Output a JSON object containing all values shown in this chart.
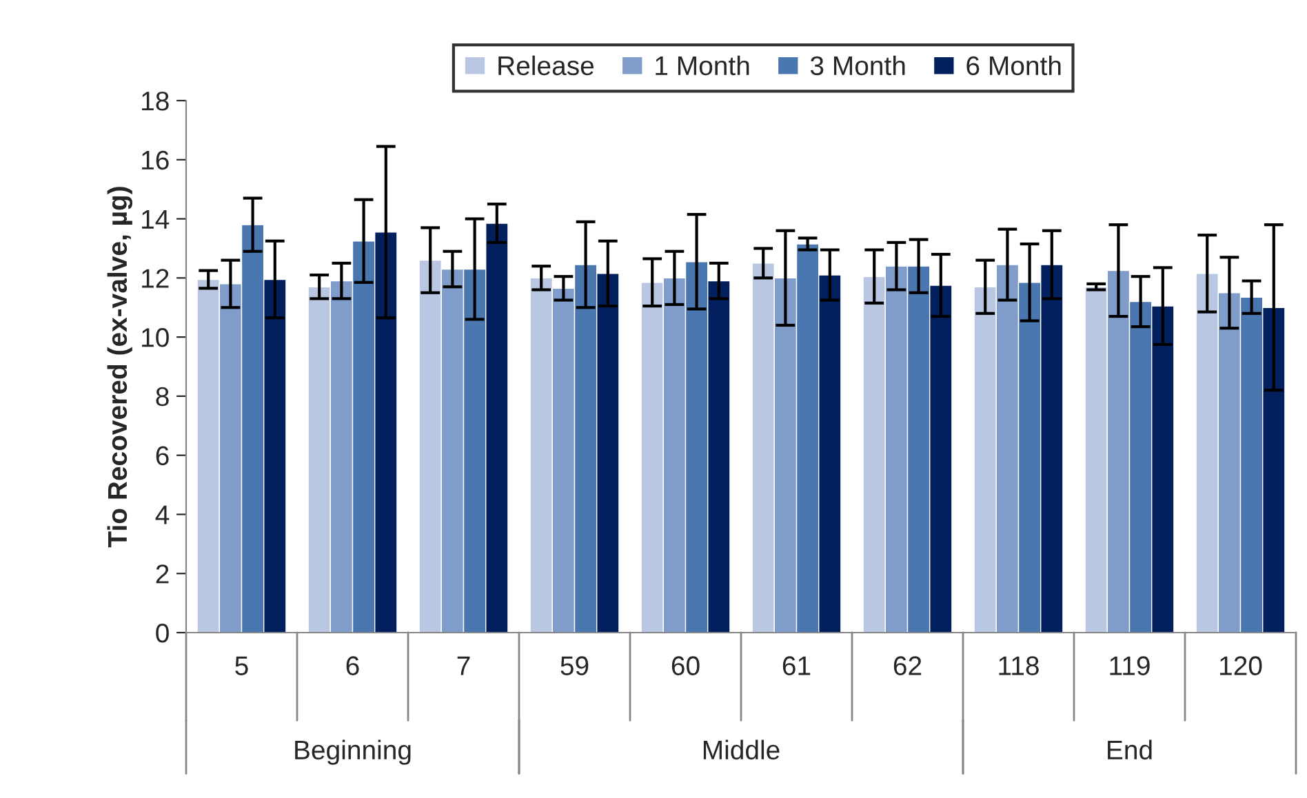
{
  "chart_data": {
    "type": "bar",
    "ylabel": "Tio Recovered (ex-valve, µg)",
    "categories": [
      "5",
      "6",
      "7",
      "59",
      "60",
      "61",
      "62",
      "118",
      "119",
      "120"
    ],
    "series": [
      {
        "name": "Release",
        "color": "#b9c7e2",
        "values": [
          11.95,
          11.7,
          12.6,
          12.0,
          11.85,
          12.5,
          12.05,
          11.7,
          11.7,
          12.15
        ],
        "errors": [
          0.3,
          0.4,
          1.1,
          0.4,
          0.8,
          0.5,
          0.9,
          0.9,
          0.1,
          1.3
        ]
      },
      {
        "name": "1 Month",
        "color": "#7f9ccb",
        "values": [
          11.8,
          11.9,
          12.3,
          11.65,
          12.0,
          12.0,
          12.4,
          12.45,
          12.25,
          11.5
        ],
        "errors": [
          0.8,
          0.6,
          0.6,
          0.4,
          0.9,
          1.6,
          0.8,
          1.2,
          1.55,
          1.2
        ]
      },
      {
        "name": "3 Month",
        "color": "#4a77b0",
        "values": [
          13.8,
          13.25,
          12.3,
          12.45,
          12.55,
          13.15,
          12.4,
          11.85,
          11.2,
          11.35
        ],
        "errors": [
          0.9,
          1.4,
          1.7,
          1.45,
          1.6,
          0.2,
          0.9,
          1.3,
          0.85,
          0.55
        ]
      },
      {
        "name": "6 Month",
        "color": "#021f5e",
        "values": [
          11.95,
          13.55,
          13.85,
          12.15,
          11.9,
          12.1,
          11.75,
          12.45,
          11.05,
          11.0
        ],
        "errors": [
          1.3,
          2.9,
          0.65,
          1.1,
          0.6,
          0.85,
          1.05,
          1.15,
          1.3,
          2.8
        ]
      }
    ],
    "ylim": [
      0,
      18
    ],
    "yticks": [
      0,
      2,
      4,
      6,
      8,
      10,
      12,
      14,
      16,
      18
    ],
    "annotations": [
      "Beginning",
      "Middle",
      "End"
    ],
    "legend": "top",
    "grid": false
  }
}
